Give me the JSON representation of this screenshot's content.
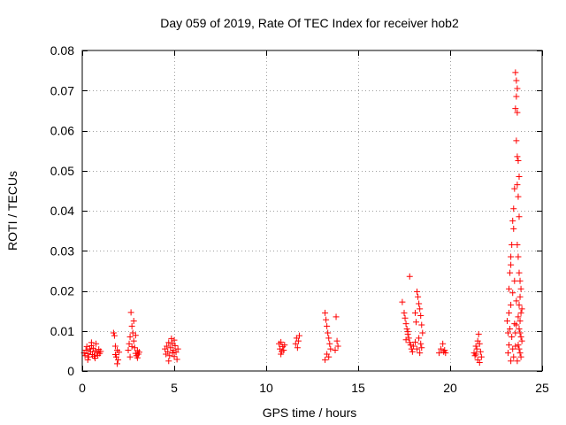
{
  "chart_data": {
    "type": "scatter",
    "title": "Day 059 of 2019, Rate Of TEC Index for receiver hob2",
    "xlabel": "GPS time / hours",
    "ylabel": "ROTI / TECUs",
    "xlim": [
      0,
      25
    ],
    "ylim": [
      0,
      0.08
    ],
    "xticks": [
      0,
      5,
      10,
      15,
      20,
      25
    ],
    "xtick_labels": [
      "0",
      "5",
      "10",
      "15",
      "20",
      "25"
    ],
    "yticks": [
      0,
      0.01,
      0.02,
      0.03,
      0.04,
      0.05,
      0.06,
      0.07,
      0.08
    ],
    "ytick_labels": [
      "0",
      "0.01",
      "0.02",
      "0.03",
      "0.04",
      "0.05",
      "0.06",
      "0.07",
      "0.08"
    ],
    "grid": true,
    "marker": "+",
    "color": "#ff0000",
    "series": [
      {
        "name": "hob2",
        "points": [
          [
            0.1,
            0.0045
          ],
          [
            0.15,
            0.0038
          ],
          [
            0.2,
            0.0052
          ],
          [
            0.25,
            0.0061
          ],
          [
            0.3,
            0.0043
          ],
          [
            0.35,
            0.0035
          ],
          [
            0.4,
            0.0055
          ],
          [
            0.45,
            0.0048
          ],
          [
            0.5,
            0.0063
          ],
          [
            0.55,
            0.0041
          ],
          [
            0.6,
            0.0057
          ],
          [
            0.65,
            0.0037
          ],
          [
            0.7,
            0.005
          ],
          [
            0.75,
            0.0068
          ],
          [
            0.8,
            0.0046
          ],
          [
            0.85,
            0.0039
          ],
          [
            0.9,
            0.0054
          ],
          [
            0.95,
            0.0044
          ],
          [
            1.0,
            0.0049
          ],
          [
            0.3,
            0.0028
          ],
          [
            0.5,
            0.0071
          ],
          [
            0.7,
            0.0032
          ],
          [
            1.7,
            0.0095
          ],
          [
            1.75,
            0.0088
          ],
          [
            1.8,
            0.0041
          ],
          [
            1.85,
            0.0035
          ],
          [
            1.9,
            0.0052
          ],
          [
            1.95,
            0.0028
          ],
          [
            2.0,
            0.0047
          ],
          [
            1.8,
            0.0062
          ],
          [
            1.9,
            0.0018
          ],
          [
            2.5,
            0.0052
          ],
          [
            2.55,
            0.0068
          ],
          [
            2.6,
            0.0085
          ],
          [
            2.65,
            0.0146
          ],
          [
            2.7,
            0.0112
          ],
          [
            2.75,
            0.0095
          ],
          [
            2.8,
            0.0075
          ],
          [
            2.85,
            0.0058
          ],
          [
            2.9,
            0.0044
          ],
          [
            2.95,
            0.0038
          ],
          [
            3.0,
            0.0051
          ],
          [
            3.05,
            0.0042
          ],
          [
            3.1,
            0.0047
          ],
          [
            2.6,
            0.0035
          ],
          [
            2.7,
            0.0061
          ],
          [
            2.8,
            0.0125
          ],
          [
            2.9,
            0.0089
          ],
          [
            3.0,
            0.0033
          ],
          [
            4.5,
            0.0055
          ],
          [
            4.55,
            0.0042
          ],
          [
            4.6,
            0.0062
          ],
          [
            4.65,
            0.0048
          ],
          [
            4.7,
            0.0071
          ],
          [
            4.75,
            0.0038
          ],
          [
            4.8,
            0.0058
          ],
          [
            4.85,
            0.0081
          ],
          [
            4.9,
            0.0045
          ],
          [
            4.95,
            0.0052
          ],
          [
            5.0,
            0.0036
          ],
          [
            5.05,
            0.0063
          ],
          [
            5.1,
            0.0047
          ],
          [
            5.15,
            0.0029
          ],
          [
            5.2,
            0.0055
          ],
          [
            4.7,
            0.0025
          ],
          [
            4.9,
            0.0068
          ],
          [
            5.0,
            0.0077
          ],
          [
            10.7,
            0.0068
          ],
          [
            10.75,
            0.0055
          ],
          [
            10.8,
            0.0072
          ],
          [
            10.85,
            0.0048
          ],
          [
            10.9,
            0.0061
          ],
          [
            10.95,
            0.0052
          ],
          [
            11.0,
            0.0065
          ],
          [
            10.8,
            0.0042
          ],
          [
            11.6,
            0.0068
          ],
          [
            11.65,
            0.0082
          ],
          [
            11.7,
            0.0058
          ],
          [
            11.75,
            0.0075
          ],
          [
            11.8,
            0.0088
          ],
          [
            13.2,
            0.0145
          ],
          [
            13.25,
            0.0128
          ],
          [
            13.3,
            0.0112
          ],
          [
            13.35,
            0.0095
          ],
          [
            13.4,
            0.0082
          ],
          [
            13.45,
            0.0068
          ],
          [
            13.5,
            0.0055
          ],
          [
            13.3,
            0.0042
          ],
          [
            13.2,
            0.0028
          ],
          [
            13.4,
            0.0035
          ],
          [
            13.8,
            0.0135
          ],
          [
            13.85,
            0.0075
          ],
          [
            13.9,
            0.0062
          ],
          [
            13.75,
            0.0052
          ],
          [
            17.4,
            0.0172
          ],
          [
            17.5,
            0.0145
          ],
          [
            17.55,
            0.0132
          ],
          [
            17.6,
            0.0118
          ],
          [
            17.65,
            0.0105
          ],
          [
            17.7,
            0.0092
          ],
          [
            17.75,
            0.0082
          ],
          [
            17.8,
            0.0071
          ],
          [
            17.85,
            0.0065
          ],
          [
            17.9,
            0.0055
          ],
          [
            17.95,
            0.0048
          ],
          [
            18.0,
            0.0062
          ],
          [
            17.6,
            0.0078
          ],
          [
            17.7,
            0.0098
          ],
          [
            17.8,
            0.0236
          ],
          [
            18.1,
            0.0145
          ],
          [
            18.15,
            0.0122
          ],
          [
            18.2,
            0.0198
          ],
          [
            18.25,
            0.0185
          ],
          [
            18.3,
            0.0168
          ],
          [
            18.35,
            0.0155
          ],
          [
            18.4,
            0.0138
          ],
          [
            18.45,
            0.0115
          ],
          [
            18.5,
            0.0095
          ],
          [
            18.3,
            0.0082
          ],
          [
            18.4,
            0.0068
          ],
          [
            18.2,
            0.0055
          ],
          [
            18.35,
            0.0045
          ],
          [
            18.45,
            0.0058
          ],
          [
            18.1,
            0.0072
          ],
          [
            19.4,
            0.0045
          ],
          [
            19.5,
            0.0055
          ],
          [
            19.6,
            0.0068
          ],
          [
            19.65,
            0.0048
          ],
          [
            19.7,
            0.0052
          ],
          [
            19.75,
            0.0045
          ],
          [
            21.3,
            0.0045
          ],
          [
            21.35,
            0.0038
          ],
          [
            21.4,
            0.0062
          ],
          [
            21.45,
            0.0055
          ],
          [
            21.5,
            0.0075
          ],
          [
            21.55,
            0.0092
          ],
          [
            21.6,
            0.0068
          ],
          [
            21.65,
            0.0048
          ],
          [
            21.7,
            0.0035
          ],
          [
            21.5,
            0.0028
          ],
          [
            21.6,
            0.0021
          ],
          [
            21.4,
            0.0042
          ],
          [
            23.1,
            0.0125
          ],
          [
            23.15,
            0.0095
          ],
          [
            23.2,
            0.0065
          ],
          [
            23.25,
            0.0245
          ],
          [
            23.3,
            0.0285
          ],
          [
            23.35,
            0.0315
          ],
          [
            23.4,
            0.0375
          ],
          [
            23.45,
            0.0405
          ],
          [
            23.5,
            0.0225
          ],
          [
            23.3,
            0.0165
          ],
          [
            23.2,
            0.0145
          ],
          [
            23.25,
            0.0105
          ],
          [
            23.35,
            0.0085
          ],
          [
            23.4,
            0.0055
          ],
          [
            23.45,
            0.0035
          ],
          [
            23.15,
            0.0045
          ],
          [
            23.3,
            0.0025
          ],
          [
            23.5,
            0.0118
          ],
          [
            23.4,
            0.0195
          ],
          [
            23.2,
            0.0205
          ],
          [
            23.3,
            0.0265
          ],
          [
            23.45,
            0.0355
          ],
          [
            23.5,
            0.0455
          ],
          [
            23.55,
            0.0745
          ],
          [
            23.6,
            0.0725
          ],
          [
            23.65,
            0.0705
          ],
          [
            23.6,
            0.0685
          ],
          [
            23.55,
            0.0655
          ],
          [
            23.65,
            0.0645
          ],
          [
            23.6,
            0.0575
          ],
          [
            23.65,
            0.0535
          ],
          [
            23.7,
            0.0525
          ],
          [
            23.75,
            0.0485
          ],
          [
            23.65,
            0.0465
          ],
          [
            23.7,
            0.0435
          ],
          [
            23.75,
            0.0385
          ],
          [
            23.65,
            0.0315
          ],
          [
            23.7,
            0.0285
          ],
          [
            23.75,
            0.0245
          ],
          [
            23.8,
            0.0225
          ],
          [
            23.85,
            0.0205
          ],
          [
            23.8,
            0.0185
          ],
          [
            23.75,
            0.0165
          ],
          [
            23.85,
            0.0145
          ],
          [
            23.8,
            0.0125
          ],
          [
            23.75,
            0.0105
          ],
          [
            23.85,
            0.0085
          ],
          [
            23.7,
            0.0065
          ],
          [
            23.8,
            0.0045
          ],
          [
            23.85,
            0.0035
          ],
          [
            23.65,
            0.0025
          ],
          [
            23.75,
            0.0055
          ],
          [
            23.9,
            0.0155
          ],
          [
            23.9,
            0.0075
          ],
          [
            23.6,
            0.0115
          ],
          [
            23.55,
            0.0095
          ],
          [
            23.7,
            0.0135
          ],
          [
            23.8,
            0.0095
          ],
          [
            23.6,
            0.0175
          ],
          [
            23.55,
            0.0062
          ]
        ]
      }
    ]
  }
}
